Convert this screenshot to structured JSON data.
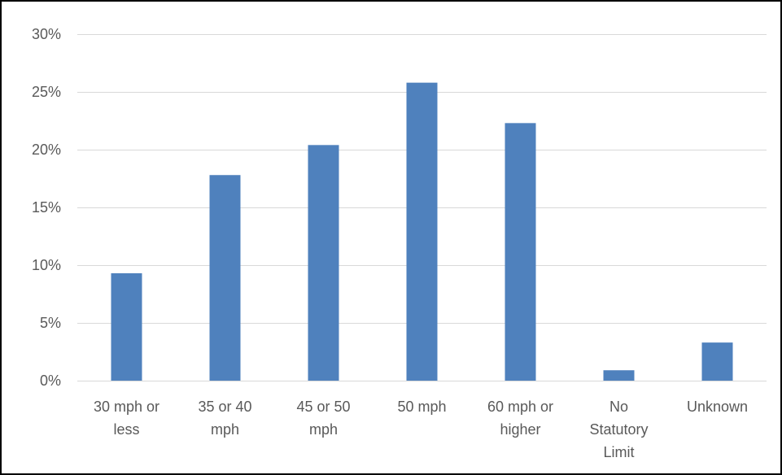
{
  "chart_data": {
    "type": "bar",
    "categories": [
      [
        "30 mph or",
        "less"
      ],
      [
        "35 or 40",
        "mph"
      ],
      [
        "45 or 50",
        "mph"
      ],
      [
        "50 mph"
      ],
      [
        "60 mph or",
        "higher"
      ],
      [
        "No",
        "Statutory",
        "Limit"
      ],
      [
        "Unknown"
      ]
    ],
    "values": [
      9.3,
      17.8,
      20.4,
      25.8,
      22.3,
      0.9,
      3.3
    ],
    "ylim": [
      0,
      30
    ],
    "yticks": [
      0,
      5,
      10,
      15,
      20,
      25,
      30
    ],
    "ytick_labels": [
      "0%",
      "5%",
      "10%",
      "15%",
      "20%",
      "25%",
      "30%"
    ],
    "title": "",
    "xlabel": "",
    "ylabel": "",
    "grid": true,
    "legend": "none",
    "colors": {
      "bar": "#4f81bd",
      "grid": "#d9d9d9",
      "axis": "#d9d9d9",
      "text": "#595959",
      "border": "#000000"
    }
  }
}
